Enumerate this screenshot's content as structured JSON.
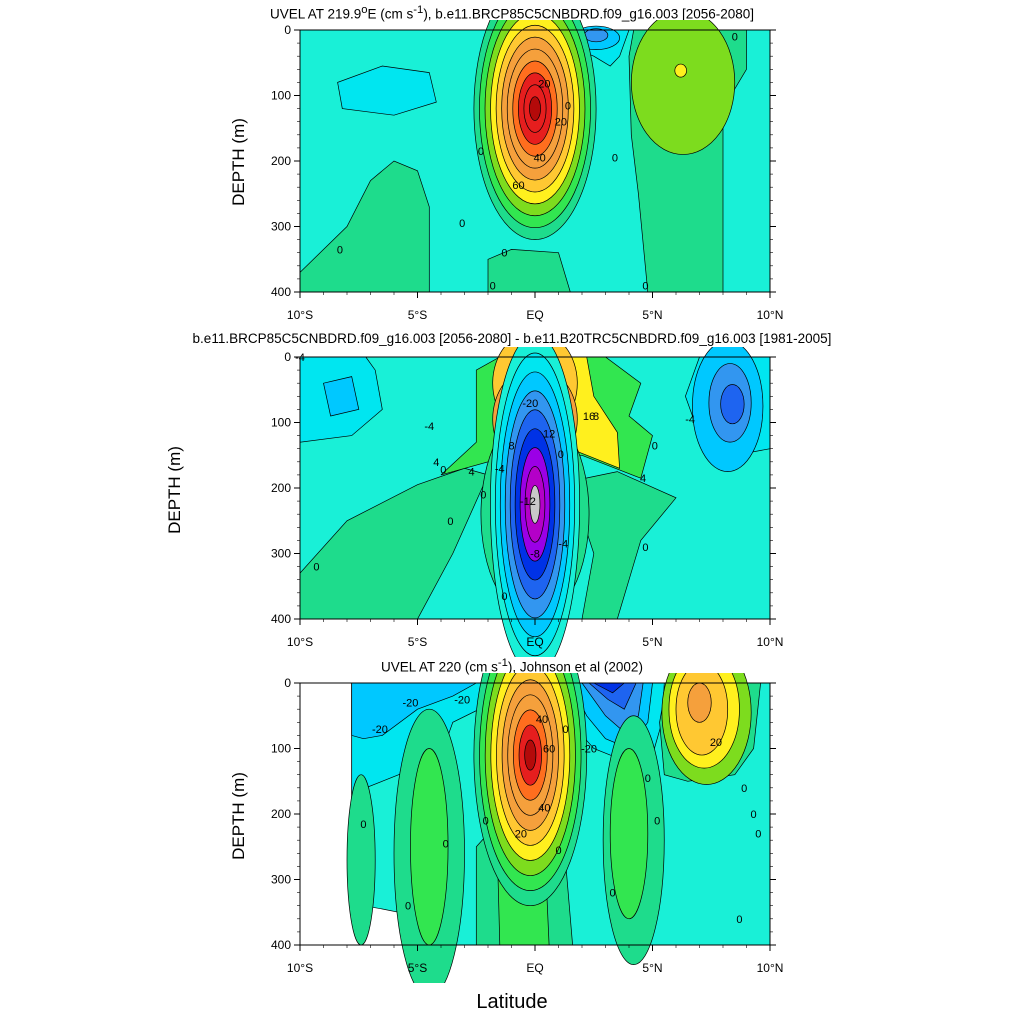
{
  "figure": {
    "xlabel": "Latitude"
  },
  "chart_data": [
    {
      "type": "heatmap",
      "title_html": "UVEL AT 219.9<sup>o</sup>E (cm s<sup>-1</sup>), b.e11.BRCP85C5CNBDRD.f09_g16.003 [2056-2080]",
      "title": "UVEL AT 219.9oE (cm s-1), b.e11.BRCP85C5CNBDRD.f09_g16.003 [2056-2080]",
      "ylabel": "DEPTH (m)",
      "xlim": [
        -10,
        10
      ],
      "ylim": [
        0,
        400
      ],
      "y_inverted": true,
      "x_ticks": [
        "10°S",
        "5°S",
        "EQ",
        "5°N",
        "10°N"
      ],
      "y_ticks": [
        "0",
        "100",
        "200",
        "300",
        "400"
      ],
      "contour_labels": [
        "0",
        "20",
        "40",
        "60",
        "20",
        "0",
        "0",
        "0",
        "0",
        "0",
        "0",
        "0",
        "0",
        "0"
      ],
      "features": [
        {
          "kind": "core",
          "lat": 0.0,
          "depth": 115,
          "max": 80,
          "sigma_lat": 1.4,
          "sigma_depth": 55
        },
        {
          "kind": "eastward",
          "lat": 6.3,
          "depth": 80,
          "max": 12
        },
        {
          "kind": "westward",
          "lat": 2.5,
          "depth": 10,
          "min": -25
        }
      ]
    },
    {
      "type": "heatmap",
      "title": "b.e11.BRCP85C5CNBDRD.f09_g16.003 [2056-2080] - b.e11.B20TRC5CNBDRD.f09_g16.003 [1981-2005]",
      "ylabel": "DEPTH (m)",
      "xlim": [
        -10,
        10
      ],
      "ylim": [
        0,
        400
      ],
      "y_inverted": true,
      "x_ticks": [
        "10°S",
        "5°S",
        "EQ",
        "5°N",
        "10°N"
      ],
      "y_ticks": [
        "0",
        "100",
        "200",
        "300",
        "400"
      ],
      "contour_labels": [
        "-20",
        "16",
        "8",
        "12",
        "8",
        "4",
        "0",
        "-4",
        "-4",
        "-4",
        "4",
        "0",
        "-12",
        "-8",
        "-4",
        "0",
        "0",
        "0",
        "0",
        "0",
        "-4",
        "0",
        "4"
      ],
      "features": [
        {
          "kind": "positive",
          "lat": 0.0,
          "depth": 95,
          "max": 24
        },
        {
          "kind": "negative",
          "lat": 0.0,
          "depth": 215,
          "min": -22
        },
        {
          "kind": "negative",
          "lat": 8.3,
          "depth": 70,
          "min": -12
        }
      ]
    },
    {
      "type": "heatmap",
      "title_html": "UVEL AT 220 (cm s<sup>-1</sup>), Johnson et al (2002)",
      "title": "UVEL AT 220 (cm s-1), Johnson et al (2002)",
      "ylabel": "DEPTH (m)",
      "xlim": [
        -10,
        10
      ],
      "ylim": [
        0,
        400
      ],
      "y_inverted": true,
      "x_ticks": [
        "10°S",
        "5°S",
        "EQ",
        "5°N",
        "10°N"
      ],
      "y_ticks": [
        "0",
        "100",
        "200",
        "300",
        "400"
      ],
      "contour_labels": [
        "-20",
        "-20",
        "-20",
        "20",
        "40",
        "60",
        "40",
        "0",
        "-20",
        "0",
        "20",
        "0",
        "0",
        "0",
        "0",
        "0",
        "0",
        "0",
        "0",
        "0",
        "0",
        "0"
      ],
      "features": [
        {
          "kind": "core",
          "lat": -0.2,
          "depth": 110,
          "max": 95
        },
        {
          "kind": "eastward",
          "lat": 7.0,
          "depth": 40,
          "max": 35
        },
        {
          "kind": "westward",
          "lat": 2.8,
          "depth": 20,
          "min": -45
        }
      ]
    }
  ]
}
